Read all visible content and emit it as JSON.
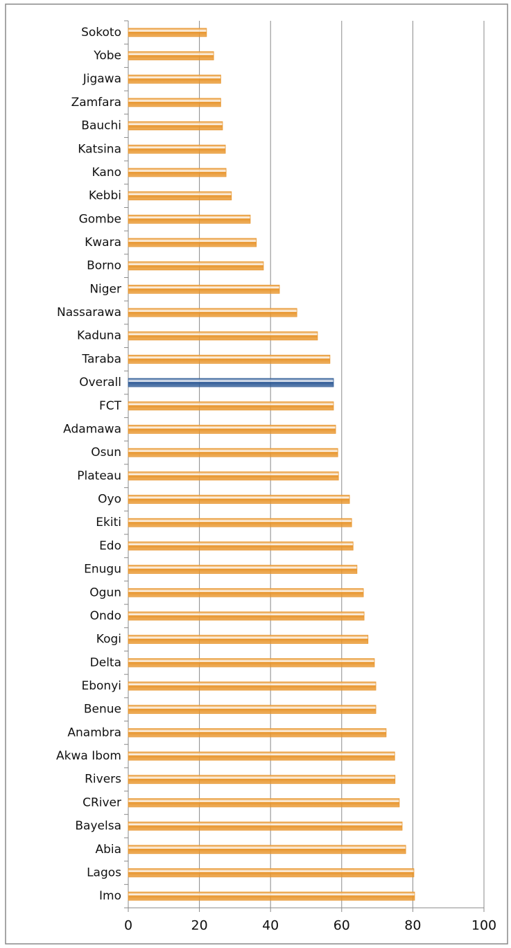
{
  "chart_data": {
    "type": "barh",
    "categories": [
      "Sokoto",
      "Yobe",
      "Jigawa",
      "Zamfara",
      "Bauchi",
      "Katsina",
      "Kano",
      "Kebbi",
      "Gombe",
      "Kwara",
      "Borno",
      "Niger",
      "Nassarawa",
      "Kaduna",
      "Taraba",
      "Overall",
      "FCT",
      "Adamawa",
      "Osun",
      "Plateau",
      "Oyo",
      "Ekiti",
      "Edo",
      "Enugu",
      "Ogun",
      "Ondo",
      "Kogi",
      "Delta",
      "Ebonyi",
      "Benue",
      "Anambra",
      "Akwa Ibom",
      "Rivers",
      "CRiver",
      "Bayelsa",
      "Abia",
      "Lagos",
      "Imo"
    ],
    "values": [
      22.0,
      24.0,
      26.0,
      26.0,
      26.5,
      27.3,
      27.5,
      29.0,
      34.3,
      36.0,
      38.0,
      42.5,
      47.4,
      53.2,
      56.7,
      57.7,
      57.7,
      58.3,
      58.9,
      59.1,
      62.2,
      62.8,
      63.2,
      64.3,
      66.1,
      66.3,
      67.4,
      69.2,
      69.6,
      69.6,
      72.5,
      74.9,
      75.0,
      76.2,
      77.0,
      78.0,
      80.3,
      80.5
    ],
    "colors": [
      "#e8962e",
      "#e8962e",
      "#e8962e",
      "#e8962e",
      "#e8962e",
      "#e8962e",
      "#e8962e",
      "#e8962e",
      "#e8962e",
      "#e8962e",
      "#e8962e",
      "#e8962e",
      "#e8962e",
      "#e8962e",
      "#e8962e",
      "#2f5b96",
      "#e8962e",
      "#e8962e",
      "#e8962e",
      "#e8962e",
      "#e8962e",
      "#e8962e",
      "#e8962e",
      "#e8962e",
      "#e8962e",
      "#e8962e",
      "#e8962e",
      "#e8962e",
      "#e8962e",
      "#e8962e",
      "#e8962e",
      "#e8962e",
      "#e8962e",
      "#e8962e",
      "#e8962e",
      "#e8962e",
      "#e8962e",
      "#e8962e"
    ],
    "xlim": [
      0,
      100
    ],
    "xticks": [
      0,
      20,
      40,
      60,
      80,
      100
    ],
    "grid": true
  }
}
